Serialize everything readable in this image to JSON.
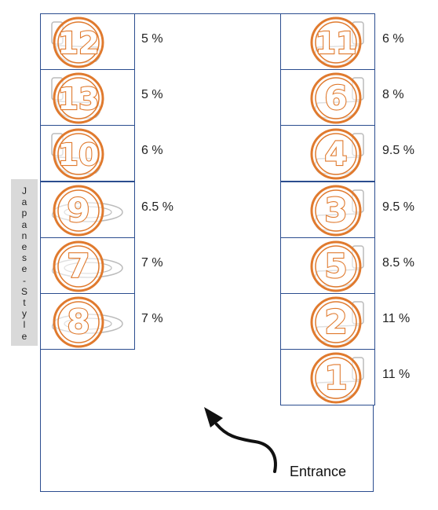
{
  "colors": {
    "wall": "#2b4d8f",
    "badge": "#e07a2e",
    "fixture": "#bbbbbb",
    "side_label_bg": "#d9d9d9"
  },
  "side_label": "Japanese-Style",
  "entrance_label": "Entrance",
  "stalls": [
    {
      "number": "12",
      "percent": "5 %",
      "style": "western",
      "column": "left"
    },
    {
      "number": "13",
      "percent": "5 %",
      "style": "western",
      "column": "left"
    },
    {
      "number": "10",
      "percent": "6 %",
      "style": "western",
      "column": "left"
    },
    {
      "number": "9",
      "percent": "6.5 %",
      "style": "japanese",
      "column": "left"
    },
    {
      "number": "7",
      "percent": "7 %",
      "style": "japanese",
      "column": "left"
    },
    {
      "number": "8",
      "percent": "7 %",
      "style": "japanese",
      "column": "left"
    },
    {
      "number": "11",
      "percent": "6 %",
      "style": "western",
      "column": "right"
    },
    {
      "number": "6",
      "percent": "8 %",
      "style": "western",
      "column": "right"
    },
    {
      "number": "4",
      "percent": "9.5 %",
      "style": "western",
      "column": "right"
    },
    {
      "number": "3",
      "percent": "9.5 %",
      "style": "western",
      "column": "right"
    },
    {
      "number": "5",
      "percent": "8.5 %",
      "style": "western",
      "column": "right"
    },
    {
      "number": "2",
      "percent": "11 %",
      "style": "western",
      "column": "right"
    },
    {
      "number": "1",
      "percent": "11 %",
      "style": "western",
      "column": "right"
    }
  ]
}
